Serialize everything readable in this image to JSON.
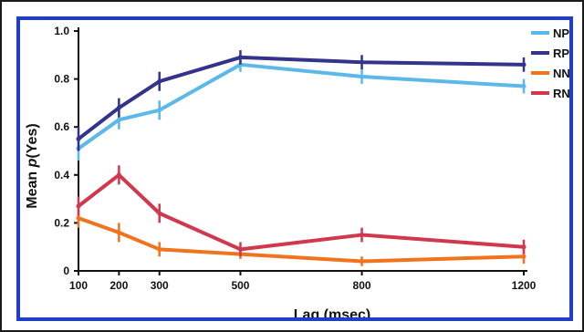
{
  "chart_data": {
    "type": "line",
    "x": [
      100,
      200,
      300,
      500,
      800,
      1200
    ],
    "xlabel": "Lag (msec)",
    "ylabel_prefix": "Mean ",
    "ylabel_italic": "p",
    "ylabel_suffix": "(Yes)",
    "xlim": [
      100,
      1200
    ],
    "ylim": [
      0,
      1.0
    ],
    "xticks": [
      "100",
      "200",
      "300",
      "500",
      "800",
      "1200"
    ],
    "yticks": [
      "0",
      "0.2",
      "0.4",
      "0.6",
      "0.8",
      "1.0"
    ],
    "grid": false,
    "legend_position": "top-right",
    "series": [
      {
        "name": "NP",
        "color": "#5bb8e8",
        "values": [
          0.51,
          0.63,
          0.67,
          0.86,
          0.81,
          0.77
        ],
        "errors": [
          0.05,
          0.04,
          0.04,
          0.03,
          0.03,
          0.03
        ]
      },
      {
        "name": "RP",
        "color": "#33338c",
        "values": [
          0.55,
          0.68,
          0.79,
          0.89,
          0.87,
          0.86
        ],
        "errors": [
          0.05,
          0.04,
          0.04,
          0.03,
          0.03,
          0.03
        ]
      },
      {
        "name": "NN",
        "color": "#f0731e",
        "values": [
          0.22,
          0.16,
          0.09,
          0.07,
          0.04,
          0.06
        ],
        "errors": [
          0.04,
          0.04,
          0.03,
          0.02,
          0.02,
          0.03
        ]
      },
      {
        "name": "RN",
        "color": "#d0384e",
        "values": [
          0.27,
          0.4,
          0.24,
          0.09,
          0.15,
          0.1
        ],
        "errors": [
          0.04,
          0.04,
          0.04,
          0.03,
          0.03,
          0.03
        ]
      }
    ]
  }
}
